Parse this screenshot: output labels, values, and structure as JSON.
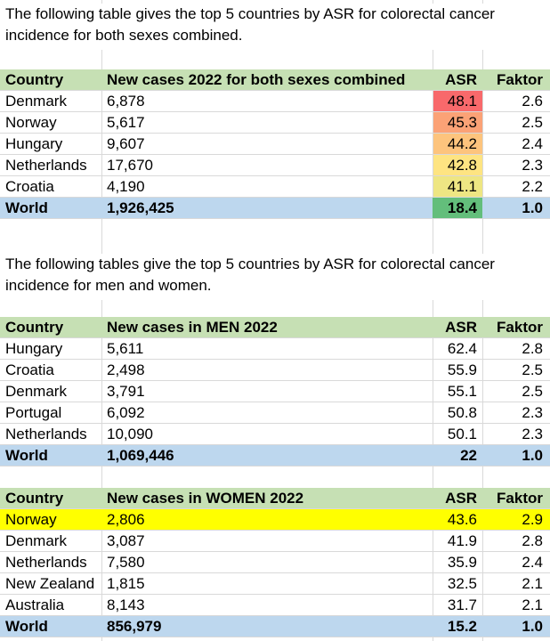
{
  "intro1": "The following table gives the top 5 countries by ASR for colorectal cancer incidence for both sexes combined.",
  "intro2": "The following tables give the top 5 countries by ASR for colorectal cancer incidence for men and women.",
  "table1": {
    "headers": [
      "Country",
      "New cases 2022 for both sexes combined",
      "ASR",
      "Faktor"
    ],
    "rows": [
      [
        "Denmark",
        "6,878",
        "48.1",
        "2.6"
      ],
      [
        "Norway",
        "5,617",
        "45.3",
        "2.5"
      ],
      [
        "Hungary",
        "9,607",
        "44.2",
        "2.4"
      ],
      [
        "Netherlands",
        "17,670",
        "42.8",
        "2.3"
      ],
      [
        "Croatia",
        "4,190",
        "41.1",
        "2.2"
      ]
    ],
    "world": [
      "World",
      "1,926,425",
      "18.4",
      "1.0"
    ],
    "asr_colors": [
      "#f8696b",
      "#fba276",
      "#fdc47d",
      "#fee482",
      "#eee683",
      "#63be7b"
    ]
  },
  "table2": {
    "headers": [
      "Country",
      "New cases in MEN 2022",
      "ASR",
      "Faktor"
    ],
    "rows": [
      [
        "Hungary",
        "5,611",
        "62.4",
        "2.8"
      ],
      [
        "Croatia",
        "2,498",
        "55.9",
        "2.5"
      ],
      [
        "Denmark",
        "3,791",
        "55.1",
        "2.5"
      ],
      [
        "Portugal",
        "6,092",
        "50.8",
        "2.3"
      ],
      [
        "Netherlands",
        "10,090",
        "50.1",
        "2.3"
      ]
    ],
    "world": [
      "World",
      "1,069,446",
      "22",
      "1.0"
    ]
  },
  "table3": {
    "headers": [
      "Country",
      "New cases in WOMEN 2022",
      "ASR",
      "Faktor"
    ],
    "rows": [
      [
        "Norway",
        "2,806",
        "43.6",
        "2.9"
      ],
      [
        "Denmark",
        "3,087",
        "41.9",
        "2.8"
      ],
      [
        "Netherlands",
        "7,580",
        "35.9",
        "2.4"
      ],
      [
        "New Zealand",
        "1,815",
        "32.5",
        "2.1"
      ],
      [
        "Australia",
        "8,143",
        "31.7",
        "2.1"
      ]
    ],
    "world": [
      "World",
      "856,979",
      "15.2",
      "1.0"
    ],
    "highlight_color": "#ffff00"
  },
  "colors": {
    "header_green": "#c6e0b4",
    "world_blue": "#bdd7ee",
    "gridline": "#d9d9d9"
  }
}
